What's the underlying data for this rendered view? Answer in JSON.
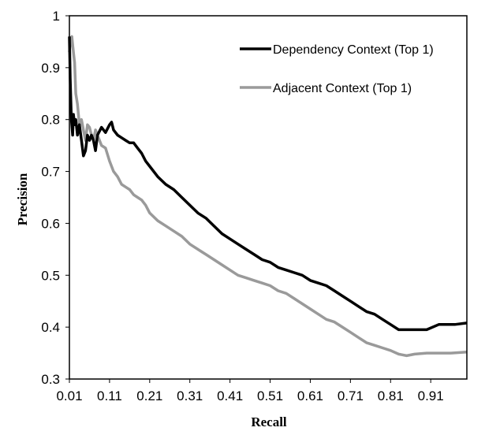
{
  "chart_data": {
    "type": "line",
    "title": "",
    "xlabel": "Recall",
    "ylabel": "Precision",
    "xlim": [
      0.01,
      1.0
    ],
    "ylim": [
      0.3,
      1.0
    ],
    "xticks": [
      "0.01",
      "0.11",
      "0.21",
      "0.31",
      "0.41",
      "0.51",
      "0.61",
      "0.71",
      "0.81",
      "0.91"
    ],
    "yticks": [
      "0.3",
      "0.4",
      "0.5",
      "0.6",
      "0.7",
      "0.8",
      "0.9",
      "1"
    ],
    "grid": false,
    "legend_position": "top-right",
    "series": [
      {
        "name": "Dependency Context (Top 1)",
        "color": "#000000",
        "x": [
          0.01,
          0.012,
          0.015,
          0.018,
          0.02,
          0.023,
          0.026,
          0.03,
          0.035,
          0.04,
          0.045,
          0.05,
          0.055,
          0.06,
          0.065,
          0.07,
          0.075,
          0.08,
          0.09,
          0.1,
          0.11,
          0.115,
          0.12,
          0.13,
          0.14,
          0.15,
          0.16,
          0.17,
          0.18,
          0.19,
          0.2,
          0.21,
          0.23,
          0.25,
          0.27,
          0.29,
          0.31,
          0.33,
          0.35,
          0.37,
          0.39,
          0.41,
          0.43,
          0.45,
          0.47,
          0.49,
          0.51,
          0.53,
          0.55,
          0.57,
          0.59,
          0.61,
          0.63,
          0.65,
          0.67,
          0.69,
          0.71,
          0.73,
          0.75,
          0.77,
          0.79,
          0.81,
          0.83,
          0.85,
          0.87,
          0.9,
          0.93,
          0.95,
          0.97,
          1.0
        ],
        "y": [
          0.96,
          0.88,
          0.8,
          0.77,
          0.81,
          0.79,
          0.8,
          0.77,
          0.79,
          0.76,
          0.73,
          0.74,
          0.77,
          0.76,
          0.77,
          0.76,
          0.74,
          0.77,
          0.785,
          0.775,
          0.79,
          0.795,
          0.78,
          0.77,
          0.765,
          0.76,
          0.755,
          0.755,
          0.745,
          0.735,
          0.72,
          0.71,
          0.69,
          0.675,
          0.665,
          0.65,
          0.635,
          0.62,
          0.61,
          0.595,
          0.58,
          0.57,
          0.56,
          0.55,
          0.54,
          0.53,
          0.525,
          0.515,
          0.51,
          0.505,
          0.5,
          0.49,
          0.485,
          0.48,
          0.47,
          0.46,
          0.45,
          0.44,
          0.43,
          0.425,
          0.415,
          0.405,
          0.395,
          0.395,
          0.395,
          0.395,
          0.405,
          0.405,
          0.405,
          0.408
        ]
      },
      {
        "name": "Adjacent Context (Top 1)",
        "color": "#9a9a9a",
        "x": [
          0.01,
          0.013,
          0.016,
          0.02,
          0.023,
          0.026,
          0.03,
          0.035,
          0.04,
          0.045,
          0.05,
          0.055,
          0.06,
          0.065,
          0.07,
          0.075,
          0.08,
          0.085,
          0.09,
          0.1,
          0.11,
          0.12,
          0.13,
          0.14,
          0.15,
          0.16,
          0.17,
          0.18,
          0.19,
          0.2,
          0.21,
          0.23,
          0.25,
          0.27,
          0.29,
          0.31,
          0.33,
          0.35,
          0.37,
          0.39,
          0.41,
          0.43,
          0.45,
          0.47,
          0.49,
          0.51,
          0.53,
          0.55,
          0.57,
          0.59,
          0.61,
          0.63,
          0.65,
          0.67,
          0.69,
          0.71,
          0.73,
          0.75,
          0.77,
          0.79,
          0.81,
          0.83,
          0.85,
          0.87,
          0.9,
          0.93,
          0.96,
          1.0
        ],
        "y": [
          0.93,
          0.95,
          0.96,
          0.93,
          0.91,
          0.85,
          0.83,
          0.79,
          0.8,
          0.78,
          0.76,
          0.79,
          0.785,
          0.77,
          0.76,
          0.78,
          0.77,
          0.76,
          0.75,
          0.745,
          0.72,
          0.7,
          0.69,
          0.675,
          0.67,
          0.665,
          0.655,
          0.65,
          0.645,
          0.635,
          0.62,
          0.605,
          0.595,
          0.585,
          0.575,
          0.56,
          0.55,
          0.54,
          0.53,
          0.52,
          0.51,
          0.5,
          0.495,
          0.49,
          0.485,
          0.48,
          0.47,
          0.465,
          0.455,
          0.445,
          0.435,
          0.425,
          0.415,
          0.41,
          0.4,
          0.39,
          0.38,
          0.37,
          0.365,
          0.36,
          0.355,
          0.348,
          0.345,
          0.348,
          0.35,
          0.35,
          0.35,
          0.352
        ]
      }
    ]
  }
}
